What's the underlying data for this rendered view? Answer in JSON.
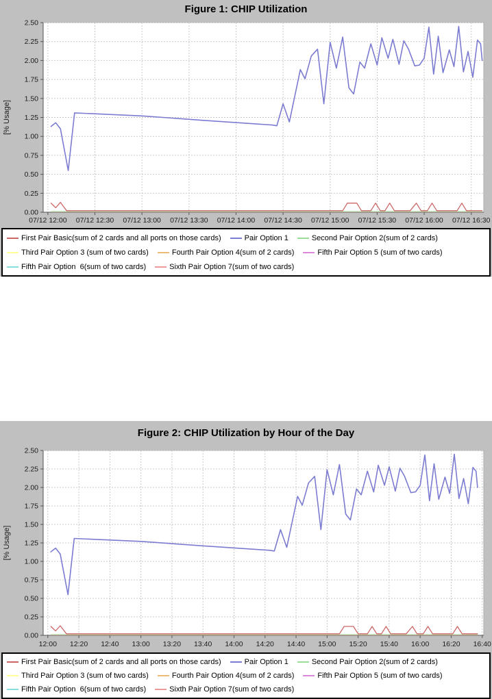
{
  "colors": {
    "figure_bg": "#c0c0c0",
    "plot_bg": "#ffffff",
    "grid": "#c9c9c9",
    "axis": "#555555",
    "text": "#1c1c1c",
    "legend_border": "#000000",
    "series_red": "#cc6666",
    "series_blue": "#7b7bd2",
    "series_green": "#99dd99",
    "series_yellow": "#ffff99",
    "series_orange": "#eebb77",
    "series_magenta": "#dd88dd",
    "series_cyan": "#88dddd",
    "series_pink": "#ee9999"
  },
  "chart_data": [
    {
      "type": "line",
      "title": "Figure 1: CHIP Utilization",
      "ylabel": "[% Usage]",
      "ylim": [
        0,
        2.5
      ],
      "y_ticks": [
        "0.00",
        "0.25",
        "0.50",
        "0.75",
        "1.00",
        "1.25",
        "1.50",
        "1.75",
        "2.00",
        "2.25",
        "2.50"
      ],
      "x_encoding": "minutes after 12:00",
      "x_domain_minutes": [
        -3,
        278
      ],
      "x_tick_minutes": [
        0,
        30,
        60,
        90,
        120,
        150,
        180,
        210,
        240,
        270
      ],
      "x_tick_labels": [
        "07/12 12:00",
        "07/12 12:30",
        "07/12 13:00",
        "07/12 13:30",
        "07/12 14:00",
        "07/12 14:30",
        "07/12 15:00",
        "07/12 15:30",
        "07/12 16:00",
        "07/12 16:30"
      ],
      "grid": "dashed",
      "legend_position": "bottom",
      "series": [
        {
          "id": "third-pair-option-3",
          "name": "Third Pair Option 3 (sum of two cards)",
          "color": "#ffff99",
          "width": 1,
          "points": [
            [
              2,
              0.005
            ],
            [
              277,
              0.005
            ]
          ]
        },
        {
          "id": "fourth-pair-option-4",
          "name": "Fourth Pair Option 4(sum of 2 cards)",
          "color": "#eebb77",
          "width": 1,
          "points": [
            [
              2,
              0.005
            ],
            [
              277,
              0.005
            ]
          ]
        },
        {
          "id": "fifth-pair-option-5",
          "name": "Fifth Pair Option 5 (sum of two cards)",
          "color": "#dd88dd",
          "width": 1,
          "points": [
            [
              2,
              0.005
            ],
            [
              277,
              0.005
            ]
          ]
        },
        {
          "id": "fifth-pair-option-6",
          "name": "Fifth Pair Option  6(sum of two cards)",
          "color": "#88dddd",
          "width": 1,
          "points": [
            [
              2,
              0.005
            ],
            [
              277,
              0.005
            ]
          ]
        },
        {
          "id": "sixth-pair-option-7",
          "name": "Sixth Pair Option 7(sum of two cards)",
          "color": "#ee9999",
          "width": 1,
          "points": [
            [
              2,
              0.005
            ],
            [
              277,
              0.005
            ]
          ]
        },
        {
          "id": "second-pair-option-2",
          "name": "Second Pair Option 2(sum of 2 cards)",
          "color": "#99dd99",
          "width": 1,
          "points": [
            [
              2,
              0.01
            ],
            [
              277,
              0.01
            ]
          ]
        },
        {
          "id": "first-pair-basic",
          "name": "First Pair Basic(sum of 2 cards and all ports on those cards)",
          "color": "#cc6666",
          "width": 1.3,
          "points": [
            [
              2,
              0.12
            ],
            [
              5,
              0.06
            ],
            [
              8,
              0.13
            ],
            [
              12,
              0.02
            ],
            [
              188,
              0.02
            ],
            [
              191,
              0.12
            ],
            [
              197,
              0.12
            ],
            [
              200,
              0.02
            ],
            [
              206,
              0.02
            ],
            [
              209,
              0.12
            ],
            [
              212,
              0.02
            ],
            [
              215,
              0.02
            ],
            [
              218,
              0.12
            ],
            [
              221,
              0.02
            ],
            [
              231,
              0.02
            ],
            [
              235,
              0.12
            ],
            [
              238,
              0.02
            ],
            [
              242,
              0.02
            ],
            [
              245,
              0.12
            ],
            [
              248,
              0.02
            ],
            [
              261,
              0.02
            ],
            [
              264,
              0.12
            ],
            [
              267,
              0.02
            ],
            [
              277,
              0.02
            ]
          ]
        },
        {
          "id": "pair-option-1",
          "name": "Pair Option 1",
          "color": "#7b7bd2",
          "width": 1.6,
          "points": [
            [
              2,
              1.13
            ],
            [
              5,
              1.18
            ],
            [
              8,
              1.1
            ],
            [
              13,
              0.55
            ],
            [
              17,
              1.31
            ],
            [
              60,
              1.27
            ],
            [
              100,
              1.21
            ],
            [
              143,
              1.15
            ],
            [
              146,
              1.14
            ],
            [
              150,
              1.43
            ],
            [
              154,
              1.19
            ],
            [
              161,
              1.88
            ],
            [
              164,
              1.76
            ],
            [
              168,
              2.06
            ],
            [
              172,
              2.15
            ],
            [
              176,
              1.43
            ],
            [
              180,
              2.24
            ],
            [
              184,
              1.9
            ],
            [
              188,
              2.31
            ],
            [
              192,
              1.64
            ],
            [
              195,
              1.56
            ],
            [
              199,
              1.98
            ],
            [
              202,
              1.9
            ],
            [
              206,
              2.22
            ],
            [
              210,
              1.94
            ],
            [
              213,
              2.3
            ],
            [
              217,
              2.03
            ],
            [
              220,
              2.28
            ],
            [
              224,
              1.95
            ],
            [
              227,
              2.26
            ],
            [
              230,
              2.15
            ],
            [
              234,
              1.93
            ],
            [
              237,
              1.94
            ],
            [
              240,
              2.03
            ],
            [
              243,
              2.44
            ],
            [
              246,
              1.82
            ],
            [
              249,
              2.32
            ],
            [
              252,
              1.84
            ],
            [
              256,
              2.14
            ],
            [
              259,
              1.92
            ],
            [
              262,
              2.45
            ],
            [
              265,
              1.85
            ],
            [
              268,
              2.12
            ],
            [
              271,
              1.78
            ],
            [
              274,
              2.27
            ],
            [
              276,
              2.22
            ],
            [
              277,
              2.0
            ]
          ]
        }
      ],
      "legend_rows": [
        [
          {
            "label": "First Pair Basic(sum of 2 cards and all ports on those cards)",
            "color": "#cc6666"
          },
          {
            "label": "Pair Option 1",
            "color": "#7b7bd2"
          },
          {
            "label": "Second Pair Option 2(sum of 2 cards)",
            "color": "#99dd99"
          }
        ],
        [
          {
            "label": "Third Pair Option 3 (sum of two cards)",
            "color": "#ffff99"
          },
          {
            "label": "Fourth Pair Option 4(sum of 2 cards)",
            "color": "#eebb77"
          },
          {
            "label": "Fifth Pair Option 5 (sum of two cards)",
            "color": "#dd88dd"
          }
        ],
        [
          {
            "label": "Fifth Pair Option  6(sum of two cards)",
            "color": "#88dddd"
          },
          {
            "label": "Sixth Pair Option 7(sum of two cards)",
            "color": "#ee9999"
          }
        ]
      ]
    },
    {
      "type": "line",
      "title": "Figure 2: CHIP Utilization by Hour of the Day",
      "ylabel": "[% Usage]",
      "ylim": [
        0,
        2.5
      ],
      "y_ticks": [
        "0.00",
        "0.25",
        "0.50",
        "0.75",
        "1.00",
        "1.25",
        "1.50",
        "1.75",
        "2.00",
        "2.25",
        "2.50"
      ],
      "x_encoding": "minutes after 12:00",
      "x_domain_minutes": [
        -3,
        281
      ],
      "x_tick_minutes": [
        0,
        20,
        40,
        60,
        80,
        100,
        120,
        140,
        160,
        180,
        200,
        220,
        240,
        260,
        280
      ],
      "x_tick_labels": [
        "12:00",
        "12:20",
        "12:40",
        "13:00",
        "13:20",
        "13:40",
        "14:00",
        "14:20",
        "14:40",
        "15:00",
        "15:20",
        "15:40",
        "16:00",
        "16:20",
        "16:40"
      ],
      "grid": "dashed",
      "legend_position": "bottom",
      "series": [
        {
          "id": "third-pair-option-3",
          "name": "Third Pair Option 3 (sum of two cards)",
          "color": "#ffff99",
          "width": 1,
          "points": [
            [
              2,
              0.005
            ],
            [
              277,
              0.005
            ]
          ]
        },
        {
          "id": "fourth-pair-option-4",
          "name": "Fourth Pair Option 4(sum of 2 cards)",
          "color": "#eebb77",
          "width": 1,
          "points": [
            [
              2,
              0.005
            ],
            [
              277,
              0.005
            ]
          ]
        },
        {
          "id": "fifth-pair-option-5",
          "name": "Fifth Pair Option 5 (sum of two cards)",
          "color": "#dd88dd",
          "width": 1,
          "points": [
            [
              2,
              0.005
            ],
            [
              277,
              0.005
            ]
          ]
        },
        {
          "id": "fifth-pair-option-6",
          "name": "Fifth Pair Option  6(sum of two cards)",
          "color": "#88dddd",
          "width": 1,
          "points": [
            [
              2,
              0.005
            ],
            [
              277,
              0.005
            ]
          ]
        },
        {
          "id": "sixth-pair-option-7",
          "name": "Sixth Pair Option 7(sum of two cards)",
          "color": "#ee9999",
          "width": 1,
          "points": [
            [
              2,
              0.005
            ],
            [
              277,
              0.005
            ]
          ]
        },
        {
          "id": "second-pair-option-2",
          "name": "Second Pair Option 2(sum of 2 cards)",
          "color": "#99dd99",
          "width": 1,
          "points": [
            [
              2,
              0.01
            ],
            [
              277,
              0.01
            ]
          ]
        },
        {
          "id": "first-pair-basic",
          "name": "First Pair Basic(sum of 2 cards and all ports on those cards)",
          "color": "#cc6666",
          "width": 1.3,
          "points": [
            [
              2,
              0.12
            ],
            [
              5,
              0.06
            ],
            [
              8,
              0.13
            ],
            [
              12,
              0.02
            ],
            [
              188,
              0.02
            ],
            [
              191,
              0.12
            ],
            [
              197,
              0.12
            ],
            [
              200,
              0.02
            ],
            [
              206,
              0.02
            ],
            [
              209,
              0.12
            ],
            [
              212,
              0.02
            ],
            [
              215,
              0.02
            ],
            [
              218,
              0.12
            ],
            [
              221,
              0.02
            ],
            [
              231,
              0.02
            ],
            [
              235,
              0.12
            ],
            [
              238,
              0.02
            ],
            [
              242,
              0.02
            ],
            [
              245,
              0.12
            ],
            [
              248,
              0.02
            ],
            [
              261,
              0.02
            ],
            [
              264,
              0.12
            ],
            [
              267,
              0.02
            ],
            [
              277,
              0.02
            ]
          ]
        },
        {
          "id": "pair-option-1",
          "name": "Pair Option 1",
          "color": "#7b7bd2",
          "width": 1.6,
          "points": [
            [
              2,
              1.13
            ],
            [
              5,
              1.18
            ],
            [
              8,
              1.1
            ],
            [
              13,
              0.55
            ],
            [
              17,
              1.31
            ],
            [
              60,
              1.27
            ],
            [
              100,
              1.21
            ],
            [
              143,
              1.15
            ],
            [
              146,
              1.14
            ],
            [
              150,
              1.43
            ],
            [
              154,
              1.19
            ],
            [
              161,
              1.88
            ],
            [
              164,
              1.76
            ],
            [
              168,
              2.06
            ],
            [
              172,
              2.15
            ],
            [
              176,
              1.43
            ],
            [
              180,
              2.24
            ],
            [
              184,
              1.9
            ],
            [
              188,
              2.31
            ],
            [
              192,
              1.64
            ],
            [
              195,
              1.56
            ],
            [
              199,
              1.98
            ],
            [
              202,
              1.9
            ],
            [
              206,
              2.22
            ],
            [
              210,
              1.94
            ],
            [
              213,
              2.3
            ],
            [
              217,
              2.03
            ],
            [
              220,
              2.28
            ],
            [
              224,
              1.95
            ],
            [
              227,
              2.26
            ],
            [
              230,
              2.15
            ],
            [
              234,
              1.93
            ],
            [
              237,
              1.94
            ],
            [
              240,
              2.03
            ],
            [
              243,
              2.44
            ],
            [
              246,
              1.82
            ],
            [
              249,
              2.32
            ],
            [
              252,
              1.84
            ],
            [
              256,
              2.14
            ],
            [
              259,
              1.92
            ],
            [
              262,
              2.45
            ],
            [
              265,
              1.85
            ],
            [
              268,
              2.12
            ],
            [
              271,
              1.78
            ],
            [
              274,
              2.27
            ],
            [
              276,
              2.22
            ],
            [
              277,
              2.0
            ]
          ]
        }
      ],
      "legend_rows": [
        [
          {
            "label": "First Pair Basic(sum of 2 cards and all ports on those cards)",
            "color": "#cc6666"
          },
          {
            "label": "Pair Option 1",
            "color": "#7b7bd2"
          },
          {
            "label": "Second Pair Option 2(sum of 2 cards)",
            "color": "#99dd99"
          }
        ],
        [
          {
            "label": "Third Pair Option 3 (sum of two cards)",
            "color": "#ffff99"
          },
          {
            "label": "Fourth Pair Option 4(sum of 2 cards)",
            "color": "#eebb77"
          },
          {
            "label": "Fifth Pair Option 5 (sum of two cards)",
            "color": "#dd88dd"
          }
        ],
        [
          {
            "label": "Fifth Pair Option  6(sum of two cards)",
            "color": "#88dddd"
          },
          {
            "label": "Sixth Pair Option 7(sum of two cards)",
            "color": "#ee9999"
          }
        ]
      ]
    }
  ]
}
